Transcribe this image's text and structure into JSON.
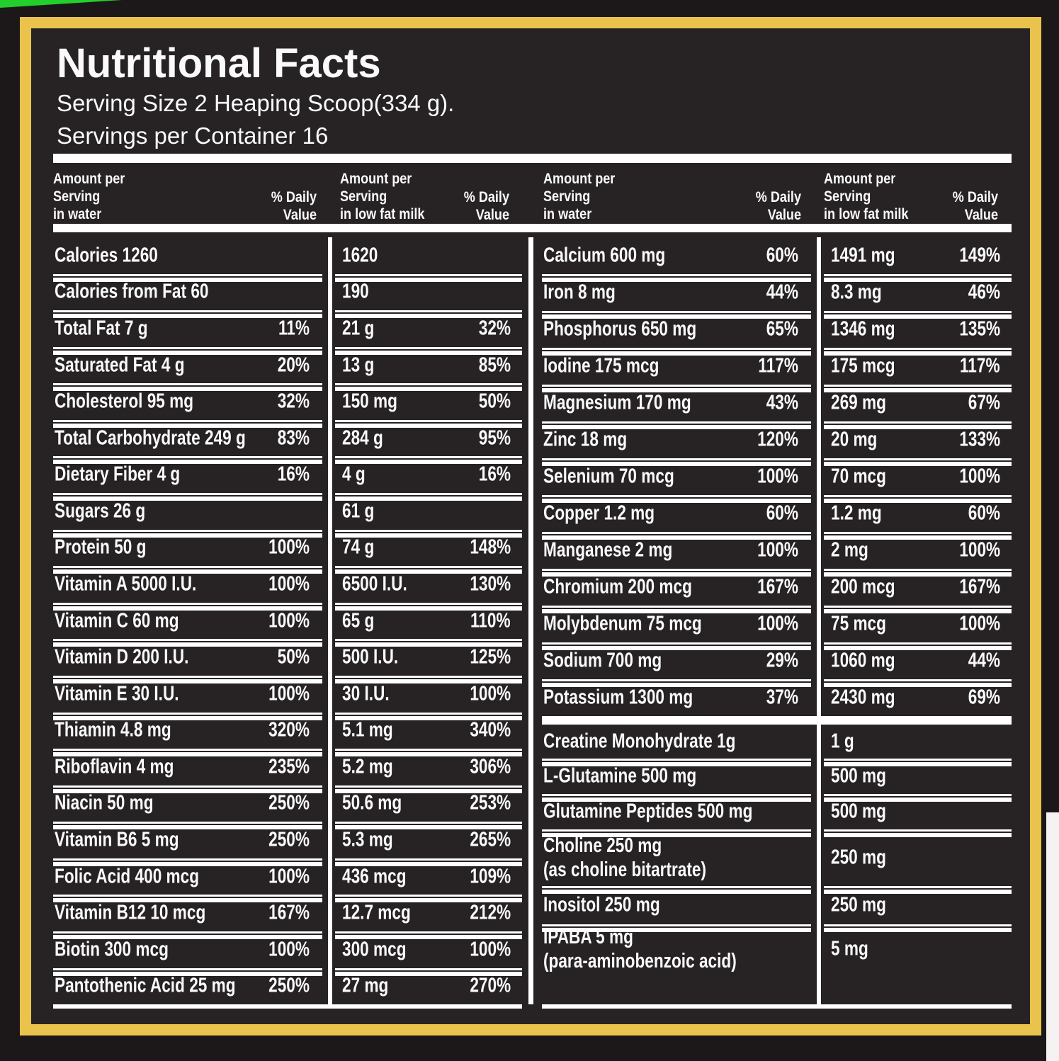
{
  "theme": {
    "border_color": "#e9c34c",
    "background": "#272324",
    "outer_background": "#1c1819",
    "accent_green": "#22cf2b",
    "text_color": "#fafafa"
  },
  "label": {
    "title": "Nutritional Facts",
    "serving_size": "Serving Size 2 Heaping Scoop(334 g).",
    "servings_per_container": "Servings per Container 16"
  },
  "columns": {
    "amount_water": [
      "Amount per",
      "Serving",
      "in water"
    ],
    "amount_milk": [
      "Amount per",
      "Serving",
      "in low fat milk"
    ],
    "daily_value": [
      "% Daily",
      "Value"
    ]
  },
  "left_table": {
    "rows": [
      {
        "label": "Calories 1260",
        "water_dv": "",
        "milk_amount": "1620",
        "milk_dv": ""
      },
      {
        "label": "Calories from Fat 60",
        "water_dv": "",
        "milk_amount": "190",
        "milk_dv": ""
      },
      {
        "label": "Total Fat 7 g",
        "water_dv": "11%",
        "milk_amount": "21 g",
        "milk_dv": "32%"
      },
      {
        "label": "Saturated Fat 4 g",
        "water_dv": "20%",
        "milk_amount": "13 g",
        "milk_dv": "85%"
      },
      {
        "label": "Cholesterol 95 mg",
        "water_dv": "32%",
        "milk_amount": "150 mg",
        "milk_dv": "50%"
      },
      {
        "label": "Total Carbohydrate 249 g",
        "water_dv": "83%",
        "milk_amount": "284 g",
        "milk_dv": "95%"
      },
      {
        "label": "Dietary Fiber 4 g",
        "water_dv": "16%",
        "milk_amount": "4 g",
        "milk_dv": "16%"
      },
      {
        "label": "Sugars 26 g",
        "water_dv": "",
        "milk_amount": "61 g",
        "milk_dv": ""
      },
      {
        "label": "Protein 50 g",
        "water_dv": "100%",
        "milk_amount": "74 g",
        "milk_dv": "148%"
      },
      {
        "label": "Vitamin A 5000 I.U.",
        "water_dv": "100%",
        "milk_amount": "6500 I.U.",
        "milk_dv": "130%"
      },
      {
        "label": "Vitamin C 60 mg",
        "water_dv": "100%",
        "milk_amount": "65 g",
        "milk_dv": "110%"
      },
      {
        "label": "Vitamin D 200 I.U.",
        "water_dv": "50%",
        "milk_amount": "500 I.U.",
        "milk_dv": "125%"
      },
      {
        "label": "Vitamin E 30 I.U.",
        "water_dv": "100%",
        "milk_amount": "30 I.U.",
        "milk_dv": "100%"
      },
      {
        "label": "Thiamin 4.8 mg",
        "water_dv": "320%",
        "milk_amount": "5.1 mg",
        "milk_dv": "340%"
      },
      {
        "label": "Riboflavin 4 mg",
        "water_dv": "235%",
        "milk_amount": "5.2 mg",
        "milk_dv": "306%"
      },
      {
        "label": "Niacin 50 mg",
        "water_dv": "250%",
        "milk_amount": "50.6 mg",
        "milk_dv": "253%"
      },
      {
        "label": "Vitamin B6 5 mg",
        "water_dv": "250%",
        "milk_amount": "5.3 mg",
        "milk_dv": "265%"
      },
      {
        "label": "Folic Acid 400 mcg",
        "water_dv": "100%",
        "milk_amount": "436 mcg",
        "milk_dv": "109%"
      },
      {
        "label": "Vitamin B12 10 mcg",
        "water_dv": "167%",
        "milk_amount": "12.7 mcg",
        "milk_dv": "212%"
      },
      {
        "label": "Biotin 300 mcg",
        "water_dv": "100%",
        "milk_amount": "300 mcg",
        "milk_dv": "100%"
      },
      {
        "label": "Pantothenic Acid 25 mg",
        "water_dv": "250%",
        "milk_amount": "27 mg",
        "milk_dv": "270%"
      }
    ]
  },
  "right_table": {
    "main_rows": [
      {
        "label": "Calcium 600 mg",
        "water_dv": "60%",
        "milk_amount": "1491 mg",
        "milk_dv": "149%"
      },
      {
        "label": "Iron 8 mg",
        "water_dv": "44%",
        "milk_amount": "8.3 mg",
        "milk_dv": "46%"
      },
      {
        "label": "Phosphorus 650 mg",
        "water_dv": "65%",
        "milk_amount": "1346 mg",
        "milk_dv": "135%"
      },
      {
        "label": "Iodine 175 mcg",
        "water_dv": "117%",
        "milk_amount": "175 mcg",
        "milk_dv": "117%"
      },
      {
        "label": "Magnesium 170 mg",
        "water_dv": "43%",
        "milk_amount": "269 mg",
        "milk_dv": "67%"
      },
      {
        "label": "Zinc 18 mg",
        "water_dv": "120%",
        "milk_amount": "20 mg",
        "milk_dv": "133%"
      },
      {
        "label": "Selenium 70 mcg",
        "water_dv": "100%",
        "milk_amount": "70 mcg",
        "milk_dv": "100%"
      },
      {
        "label": "Copper 1.2 mg",
        "water_dv": "60%",
        "milk_amount": "1.2 mg",
        "milk_dv": "60%"
      },
      {
        "label": "Manganese 2 mg",
        "water_dv": "100%",
        "milk_amount": "2 mg",
        "milk_dv": "100%"
      },
      {
        "label": "Chromium 200 mcg",
        "water_dv": "167%",
        "milk_amount": "200 mcg",
        "milk_dv": "167%"
      },
      {
        "label": "Molybdenum 75 mcg",
        "water_dv": "100%",
        "milk_amount": "75 mcg",
        "milk_dv": "100%"
      },
      {
        "label": "Sodium 700 mg",
        "water_dv": "29%",
        "milk_amount": "1060 mg",
        "milk_dv": "44%"
      },
      {
        "label": "Potassium 1300 mg",
        "water_dv": "37%",
        "milk_amount": "2430 mg",
        "milk_dv": "69%"
      }
    ],
    "supplement_rows": [
      {
        "label": "Creatine Monohydrate 1g",
        "water_dv": "",
        "milk_amount": "1 g",
        "milk_dv": ""
      },
      {
        "label": "L-Glutamine 500 mg",
        "water_dv": "",
        "milk_amount": "500 mg",
        "milk_dv": ""
      },
      {
        "label": "Glutamine Peptides 500 mg",
        "water_dv": "",
        "milk_amount": "500 mg",
        "milk_dv": ""
      },
      {
        "label": "Choline 250 mg",
        "label2": "(as choline bitartrate)",
        "water_dv": "",
        "milk_amount": "250 mg",
        "milk_dv": ""
      },
      {
        "label": "Inositol 250 mg",
        "water_dv": "",
        "milk_amount": "250 mg",
        "milk_dv": ""
      },
      {
        "label": "IPABA 5 mg",
        "label2": "(para-aminobenzoic acid)",
        "water_dv": "",
        "milk_amount": "5 mg",
        "milk_dv": ""
      }
    ]
  }
}
